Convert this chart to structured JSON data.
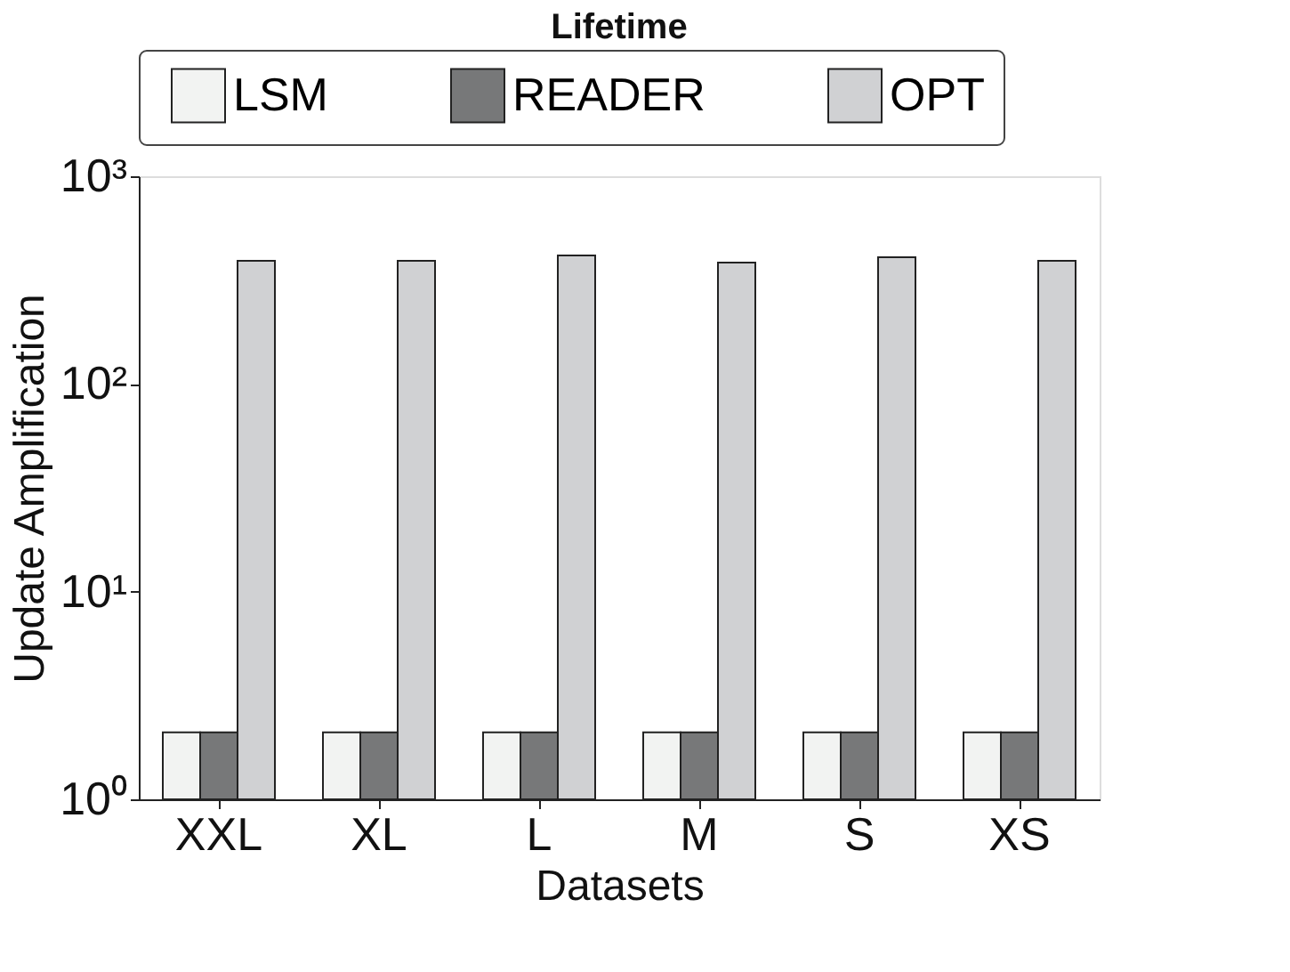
{
  "chart_data": {
    "type": "bar",
    "title": "Lifetime",
    "xlabel": "Datasets",
    "ylabel": "Update Amplification",
    "categories": [
      "XXL",
      "XL",
      "L",
      "M",
      "S",
      "XS"
    ],
    "series": [
      {
        "name": "LSM",
        "color": "#f2f3f2",
        "values": [
          2.1,
          2.1,
          2.1,
          2.1,
          2.1,
          2.1
        ]
      },
      {
        "name": "READER",
        "color": "#777879",
        "values": [
          2.1,
          2.1,
          2.1,
          2.1,
          2.1,
          2.1
        ]
      },
      {
        "name": "OPT",
        "color": "#d0d1d3",
        "values": [
          392,
          392,
          416,
          384,
          407,
          392
        ]
      }
    ],
    "log": "y",
    "ylim": [
      1,
      1000
    ],
    "yticks": [
      {
        "value": 1,
        "label": "10⁰"
      },
      {
        "value": 10,
        "label": "10¹"
      },
      {
        "value": 100,
        "label": "10²"
      },
      {
        "value": 1000,
        "label": "10³"
      }
    ],
    "legend": "top",
    "grid": false
  }
}
